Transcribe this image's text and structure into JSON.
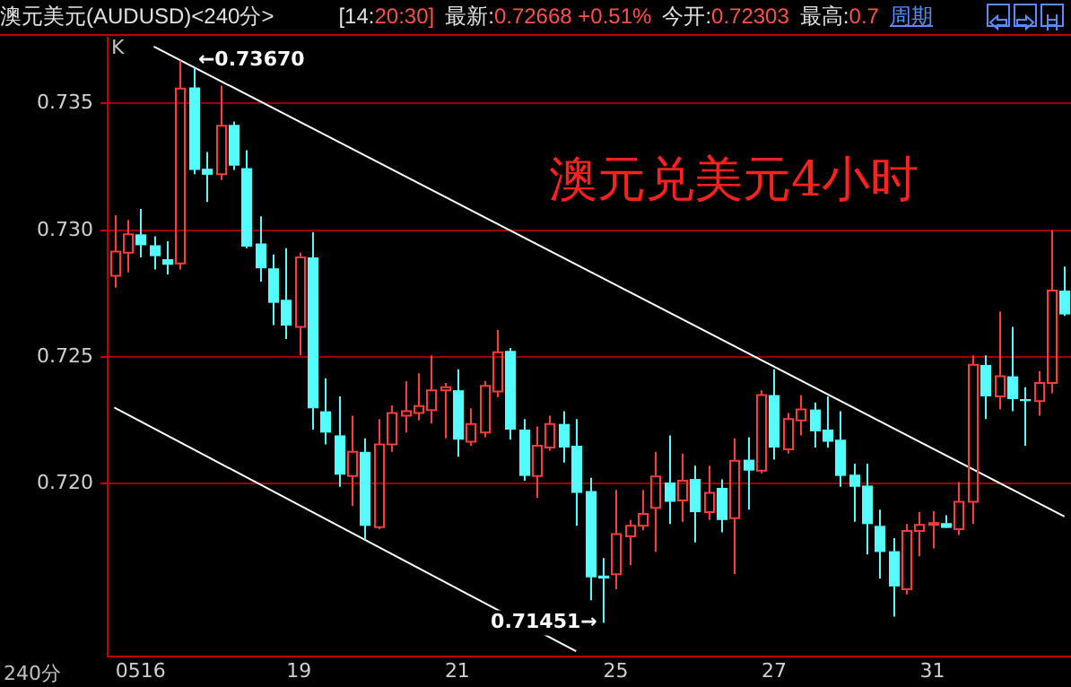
{
  "chart_data": {
    "type": "candlestick",
    "title": "澳元兑美元4小时",
    "subtitle": "澳元美元(AUDUSD)<240分>",
    "xlabel": "240分",
    "categories": [
      null,
      null,
      "0516",
      null,
      null,
      null,
      null,
      null,
      null,
      null,
      null,
      null,
      null,
      null,
      "19",
      null,
      null,
      null,
      null,
      null,
      null,
      null,
      null,
      null,
      null,
      null,
      "21",
      null,
      null,
      null,
      null,
      null,
      null,
      null,
      null,
      null,
      null,
      null,
      "25",
      null,
      null,
      null,
      null,
      null,
      null,
      null,
      null,
      null,
      null,
      null,
      "27",
      null,
      null,
      null,
      null,
      null,
      null,
      null,
      null,
      null,
      null,
      null,
      "31",
      null,
      null,
      null,
      null,
      null,
      null,
      null,
      null,
      null,
      null
    ],
    "ohlc": [
      [
        0.72821,
        0.73059,
        0.72774,
        0.72916
      ],
      [
        0.72912,
        0.73041,
        0.72834,
        0.72984
      ],
      [
        0.72984,
        0.73084,
        0.72893,
        0.72941
      ],
      [
        0.72941,
        0.72976,
        0.72845,
        0.72898
      ],
      [
        0.72886,
        0.72957,
        0.72826,
        0.72864
      ],
      [
        0.72869,
        0.7367,
        0.72845,
        0.73559
      ],
      [
        0.73564,
        0.73643,
        0.73221,
        0.73238
      ],
      [
        0.73243,
        0.73309,
        0.73112,
        0.73219
      ],
      [
        0.73221,
        0.73571,
        0.73198,
        0.73412
      ],
      [
        0.73416,
        0.73429,
        0.73238,
        0.73255
      ],
      [
        0.73245,
        0.73316,
        0.72929,
        0.72936
      ],
      [
        0.72948,
        0.73055,
        0.72798,
        0.7285
      ],
      [
        0.7285,
        0.72905,
        0.72626,
        0.72714
      ],
      [
        0.72726,
        0.72929,
        0.72571,
        0.72624
      ],
      [
        0.72619,
        0.72912,
        0.72507,
        0.72893
      ],
      [
        0.72893,
        0.72993,
        0.72214,
        0.72298
      ],
      [
        0.72286,
        0.72416,
        0.72155,
        0.72202
      ],
      [
        0.72191,
        0.72345,
        0.71988,
        0.72036
      ],
      [
        0.72031,
        0.72269,
        0.71912,
        0.72126
      ],
      [
        0.72126,
        0.72179,
        0.71779,
        0.71834
      ],
      [
        0.71829,
        0.72255,
        0.71821,
        0.72155
      ],
      [
        0.72155,
        0.72309,
        0.72126,
        0.72279
      ],
      [
        0.72269,
        0.72405,
        0.72202,
        0.72286
      ],
      [
        0.72279,
        0.72436,
        0.7225,
        0.72307
      ],
      [
        0.72291,
        0.72507,
        0.72238,
        0.72369
      ],
      [
        0.72369,
        0.72398,
        0.72179,
        0.72381
      ],
      [
        0.72369,
        0.72452,
        0.72107,
        0.72174
      ],
      [
        0.72166,
        0.72298,
        0.7215,
        0.72236
      ],
      [
        0.72202,
        0.72405,
        0.72184,
        0.72386
      ],
      [
        0.72364,
        0.72607,
        0.72341,
        0.72519
      ],
      [
        0.72524,
        0.72536,
        0.72174,
        0.72214
      ],
      [
        0.72214,
        0.72255,
        0.72012,
        0.72031
      ],
      [
        0.72031,
        0.72226,
        0.71945,
        0.7215
      ],
      [
        0.72143,
        0.72269,
        0.72131,
        0.72236
      ],
      [
        0.72236,
        0.72286,
        0.72084,
        0.72143
      ],
      [
        0.7215,
        0.72255,
        0.71834,
        0.71964
      ],
      [
        0.71971,
        0.72024,
        0.71541,
        0.71631
      ],
      [
        0.71638,
        0.71707,
        0.71451,
        0.71626
      ],
      [
        0.71643,
        0.71976,
        0.71584,
        0.71802
      ],
      [
        0.71793,
        0.71857,
        0.71679,
        0.71834
      ],
      [
        0.71834,
        0.71976,
        0.71817,
        0.71881
      ],
      [
        0.71905,
        0.72126,
        0.71731,
        0.72029
      ],
      [
        0.72005,
        0.72191,
        0.71841,
        0.71929
      ],
      [
        0.71934,
        0.72119,
        0.7185,
        0.72012
      ],
      [
        0.72019,
        0.72071,
        0.71769,
        0.71888
      ],
      [
        0.71888,
        0.72071,
        0.71857,
        0.71964
      ],
      [
        0.71984,
        0.72017,
        0.71809,
        0.71857
      ],
      [
        0.71864,
        0.72179,
        0.71643,
        0.72091
      ],
      [
        0.72095,
        0.72184,
        0.71898,
        0.72052
      ],
      [
        0.72052,
        0.72369,
        0.72041,
        0.7235
      ],
      [
        0.7235,
        0.72452,
        0.72095,
        0.72143
      ],
      [
        0.72136,
        0.72279,
        0.72119,
        0.72255
      ],
      [
        0.7225,
        0.7235,
        0.72191,
        0.72293
      ],
      [
        0.72293,
        0.72321,
        0.72143,
        0.72207
      ],
      [
        0.72214,
        0.72345,
        0.72143,
        0.72166
      ],
      [
        0.72174,
        0.72286,
        0.71988,
        0.72031
      ],
      [
        0.72036,
        0.72079,
        0.7185,
        0.71988
      ],
      [
        0.71993,
        0.72079,
        0.71721,
        0.71841
      ],
      [
        0.71834,
        0.71898,
        0.71626,
        0.71731
      ],
      [
        0.71734,
        0.71786,
        0.71476,
        0.71595
      ],
      [
        0.71584,
        0.71841,
        0.71564,
        0.71814
      ],
      [
        0.71814,
        0.71888,
        0.71714,
        0.71838
      ],
      [
        0.71841,
        0.71893,
        0.71745,
        0.71845
      ],
      [
        0.71845,
        0.71876,
        0.71826,
        0.71826
      ],
      [
        0.71821,
        0.72007,
        0.71798,
        0.71929
      ],
      [
        0.71929,
        0.72507,
        0.71841,
        0.72469
      ],
      [
        0.72469,
        0.72507,
        0.72255,
        0.72345
      ],
      [
        0.72345,
        0.72679,
        0.72293,
        0.72424
      ],
      [
        0.72424,
        0.72619,
        0.72286,
        0.72334
      ],
      [
        0.72334,
        0.72381,
        0.7215,
        0.72326
      ],
      [
        0.72326,
        0.72445,
        0.72269,
        0.72398
      ],
      [
        0.72398,
        0.73,
        0.72357,
        0.72762
      ],
      [
        0.72762,
        0.72857,
        0.72662,
        0.72668
      ]
    ],
    "colors": [
      "#ff3c3c",
      "#ff3c3c",
      "#54fcfc",
      "#54fcfc",
      "#54fcfc",
      "#ff3c3c",
      "#54fcfc",
      "#54fcfc",
      "#ff3c3c",
      "#54fcfc",
      "#54fcfc",
      "#54fcfc",
      "#54fcfc",
      "#54fcfc",
      "#ff3c3c",
      "#54fcfc",
      "#54fcfc",
      "#54fcfc",
      "#ff3c3c",
      "#54fcfc",
      "#ff3c3c",
      "#ff3c3c",
      "#ff3c3c",
      "#ff3c3c",
      "#ff3c3c",
      "#ff3c3c",
      "#54fcfc",
      "#ff3c3c",
      "#ff3c3c",
      "#ff3c3c",
      "#54fcfc",
      "#54fcfc",
      "#ff3c3c",
      "#ff3c3c",
      "#54fcfc",
      "#54fcfc",
      "#54fcfc",
      "#54fcfc",
      "#ff3c3c",
      "#ff3c3c",
      "#ff3c3c",
      "#ff3c3c",
      "#54fcfc",
      "#ff3c3c",
      "#54fcfc",
      "#ff3c3c",
      "#54fcfc",
      "#ff3c3c",
      "#54fcfc",
      "#ff3c3c",
      "#54fcfc",
      "#ff3c3c",
      "#ff3c3c",
      "#54fcfc",
      "#54fcfc",
      "#54fcfc",
      "#54fcfc",
      "#54fcfc",
      "#54fcfc",
      "#54fcfc",
      "#ff3c3c",
      "#ff3c3c",
      "#ff3c3c",
      "#54fcfc",
      "#ff3c3c",
      "#ff3c3c",
      "#54fcfc",
      "#ff3c3c",
      "#54fcfc",
      "#54fcfc",
      "#ff3c3c",
      "#ff3c3c",
      "#54fcfc"
    ],
    "series": [
      {
        "type": "line",
        "color": "#ffffff",
        "values": [
          null,
          null,
          null,
          0.73725,
          null,
          null,
          null,
          null,
          null,
          null,
          null,
          null,
          null,
          null,
          null,
          null,
          null,
          null,
          null,
          null,
          null,
          null,
          null,
          null,
          null,
          null,
          null,
          null,
          null,
          null,
          null,
          null,
          null,
          null,
          null,
          null,
          null,
          null,
          null,
          null,
          null,
          null,
          null,
          null,
          null,
          null,
          null,
          null,
          null,
          null,
          null,
          null,
          null,
          null,
          null,
          null,
          null,
          null,
          null,
          null,
          null,
          null,
          null,
          null,
          null,
          null,
          null,
          null,
          null,
          null,
          null,
          null,
          0.71871
        ]
      },
      {
        "type": "line",
        "color": "#ffffff",
        "values": [
          0.72301,
          null,
          null,
          null,
          null,
          null,
          null,
          null,
          null,
          null,
          null,
          null,
          null,
          null,
          null,
          null,
          null,
          null,
          null,
          null,
          null,
          null,
          null,
          null,
          null,
          null,
          null,
          null,
          null,
          null,
          null,
          null,
          null,
          null,
          null,
          0.71339,
          null,
          null,
          null,
          null,
          null,
          null,
          null,
          null,
          null,
          null,
          null,
          null,
          null,
          null,
          null,
          null,
          null,
          null,
          null,
          null,
          null,
          null,
          null,
          null,
          null,
          null,
          null,
          null,
          null,
          null,
          null,
          null,
          null,
          null,
          null,
          null,
          null
        ]
      }
    ],
    "ylim": [
      0.7132,
      0.7376
    ],
    "yticks": [
      {
        "value": 0.72,
        "label": "0.720"
      },
      {
        "value": 0.725,
        "label": "0.725"
      },
      {
        "value": 0.73,
        "label": "0.730"
      },
      {
        "value": 0.735,
        "label": "0.735"
      }
    ],
    "grid": "y",
    "legend": false,
    "annotations": [
      "[14:20:30]",
      "最新:0.72668 +0.51%",
      "今开:0.72303",
      "最高:0.7",
      "周期",
      "K",
      "←0.73670",
      "0.71451→"
    ]
  }
}
